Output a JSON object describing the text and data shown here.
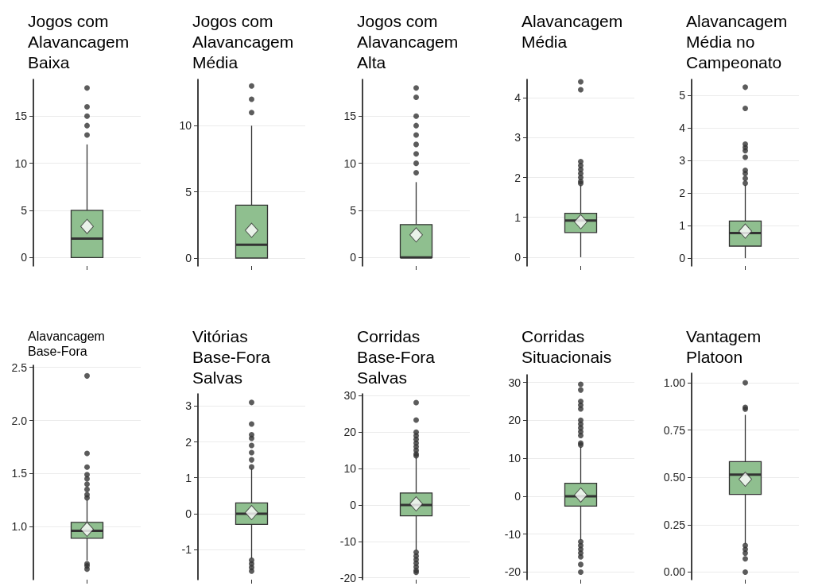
{
  "chart_data": [
    {
      "type": "box",
      "title": "Jogos com Alavancagem Baixa",
      "categories": [
        null
      ],
      "ylim": [
        -0.9,
        18.9
      ],
      "yticks": [
        0,
        5,
        10,
        15
      ],
      "grid": "y",
      "series": [
        {
          "color": "#8fbf8f",
          "boxes": [
            {
              "low": 0,
              "q1": 0,
              "median": 2,
              "q3": 5,
              "high": 12,
              "mean": 3.3,
              "outliers": [
                13,
                14,
                15,
                16,
                18
              ]
            }
          ]
        }
      ]
    },
    {
      "type": "box",
      "title": "Jogos com Alavancagem Média",
      "categories": [
        null
      ],
      "ylim": [
        -0.6,
        13.5
      ],
      "yticks": [
        0,
        5,
        10
      ],
      "grid": "y",
      "series": [
        {
          "color": "#8fbf8f",
          "boxes": [
            {
              "low": 0,
              "q1": 0,
              "median": 1,
              "q3": 4,
              "high": 10,
              "mean": 2.1,
              "outliers": [
                11,
                12,
                13
              ]
            }
          ]
        }
      ]
    },
    {
      "type": "box",
      "title": "Jogos com Alavancagem Alta",
      "categories": [
        null
      ],
      "ylim": [
        -0.9,
        18.9
      ],
      "yticks": [
        0,
        5,
        10,
        15
      ],
      "grid": "y",
      "series": [
        {
          "color": "#8fbf8f",
          "boxes": [
            {
              "low": 0,
              "q1": 0,
              "median": 0,
              "q3": 3.5,
              "high": 8,
              "mean": 2.4,
              "outliers": [
                9,
                10,
                11,
                12,
                13,
                14,
                15,
                17,
                18
              ]
            }
          ]
        }
      ]
    },
    {
      "type": "box",
      "title": "Alavancagem Média",
      "categories": [
        null
      ],
      "ylim": [
        -0.22,
        4.46
      ],
      "yticks": [
        0,
        1,
        2,
        3,
        4
      ],
      "grid": "y",
      "series": [
        {
          "color": "#8fbf8f",
          "boxes": [
            {
              "low": 0,
              "q1": 0.62,
              "median": 0.92,
              "q3": 1.1,
              "high": 1.82,
              "mean": 0.89,
              "outliers": [
                1.85,
                1.9,
                2.0,
                2.1,
                2.2,
                2.3,
                2.4,
                4.2,
                4.4
              ]
            }
          ]
        }
      ]
    },
    {
      "type": "box",
      "title": "Alavancagem Média no Campeonato",
      "categories": [
        null
      ],
      "ylim": [
        -0.24,
        5.49
      ],
      "yticks": [
        0,
        1,
        2,
        3,
        4,
        5
      ],
      "grid": "y",
      "series": [
        {
          "color": "#8fbf8f",
          "boxes": [
            {
              "low": 0,
              "q1": 0.37,
              "median": 0.77,
              "q3": 1.14,
              "high": 2.25,
              "mean": 0.83,
              "outliers": [
                2.3,
                2.45,
                2.6,
                2.7,
                3.1,
                3.3,
                3.4,
                3.5,
                4.6,
                5.25
              ]
            }
          ]
        }
      ]
    },
    {
      "type": "box",
      "title": "Alavancagem Base-Fora",
      "categories": [
        null
      ],
      "ylim": [
        0.5,
        2.52
      ],
      "yticks": [
        {
          "value": 1,
          "label": "1.0"
        },
        {
          "value": 1.5,
          "label": "1.5"
        },
        {
          "value": 2,
          "label": "2.0"
        },
        {
          "value": 2.5,
          "label": "2.5"
        }
      ],
      "grid": "y",
      "series": [
        {
          "color": "#8fbf8f",
          "boxes": [
            {
              "low": 0.68,
              "q1": 0.89,
              "median": 0.96,
              "q3": 1.04,
              "high": 1.25,
              "mean": 0.975,
              "outliers": [
                0.6,
                0.63,
                0.65,
                1.27,
                1.3,
                1.35,
                1.4,
                1.45,
                1.49,
                1.56,
                1.69,
                2.42
              ]
            }
          ]
        }
      ]
    },
    {
      "type": "box",
      "title": "Vitórias Base-Fora Salvas",
      "categories": [
        null
      ],
      "ylim": [
        -1.84,
        3.34
      ],
      "yticks": [
        -1,
        0,
        1,
        2,
        3
      ],
      "grid": "y",
      "series": [
        {
          "color": "#8fbf8f",
          "boxes": [
            {
              "low": -1.25,
              "q1": -0.3,
              "median": 0,
              "q3": 0.3,
              "high": 1.25,
              "mean": 0.03,
              "outliers": [
                -1.6,
                -1.5,
                -1.4,
                -1.3,
                1.3,
                1.5,
                1.7,
                1.9,
                2.1,
                2.2,
                2.5,
                3.1
              ]
            }
          ]
        }
      ]
    },
    {
      "type": "box",
      "title": "Corridas Base-Fora Salvas",
      "categories": [
        null
      ],
      "ylim": [
        -20.5,
        30.5
      ],
      "yticks": [
        -20,
        -10,
        0,
        10,
        20,
        30
      ],
      "grid": "y",
      "series": [
        {
          "color": "#8fbf8f",
          "boxes": [
            {
              "low": -12.5,
              "q1": -3,
              "median": 0,
              "q3": 3.3,
              "high": 13,
              "mean": 0.3,
              "outliers": [
                -18.5,
                -18,
                -17,
                -16,
                -15,
                -14,
                -13,
                13.5,
                14,
                15,
                16,
                17,
                18,
                19,
                20,
                23.3,
                28.1
              ]
            }
          ]
        }
      ]
    },
    {
      "type": "box",
      "title": "Corridas Situacionais",
      "categories": [
        null
      ],
      "ylim": [
        -22,
        32
      ],
      "yticks": [
        -20,
        -10,
        0,
        10,
        20,
        30
      ],
      "grid": "y",
      "series": [
        {
          "color": "#8fbf8f",
          "boxes": [
            {
              "low": -11.5,
              "q1": -2.6,
              "median": 0,
              "q3": 3.4,
              "high": 13,
              "mean": 0.3,
              "outliers": [
                -20,
                -18,
                -16,
                -15,
                -14,
                -13,
                -12,
                13.5,
                14,
                16,
                17,
                18,
                19,
                20,
                23,
                24,
                25,
                28,
                29.5
              ]
            }
          ]
        }
      ]
    },
    {
      "type": "box",
      "title": "Vantagem Platoon",
      "categories": [
        null
      ],
      "ylim": [
        -0.04,
        1.05
      ],
      "yticks": [
        {
          "value": 0,
          "label": "0.00"
        },
        {
          "value": 0.25,
          "label": "0.25"
        },
        {
          "value": 0.5,
          "label": "0.50"
        },
        {
          "value": 0.75,
          "label": "0.75"
        },
        {
          "value": 1,
          "label": "1.00"
        }
      ],
      "grid": "y",
      "series": [
        {
          "color": "#8fbf8f",
          "boxes": [
            {
              "low": 0.15,
              "q1": 0.41,
              "median": 0.514,
              "q3": 0.583,
              "high": 0.83,
              "mean": 0.49,
              "outliers": [
                0,
                0.07,
                0.1,
                0.12,
                0.14,
                0.86,
                0.87,
                1.0
              ]
            }
          ]
        }
      ]
    }
  ]
}
